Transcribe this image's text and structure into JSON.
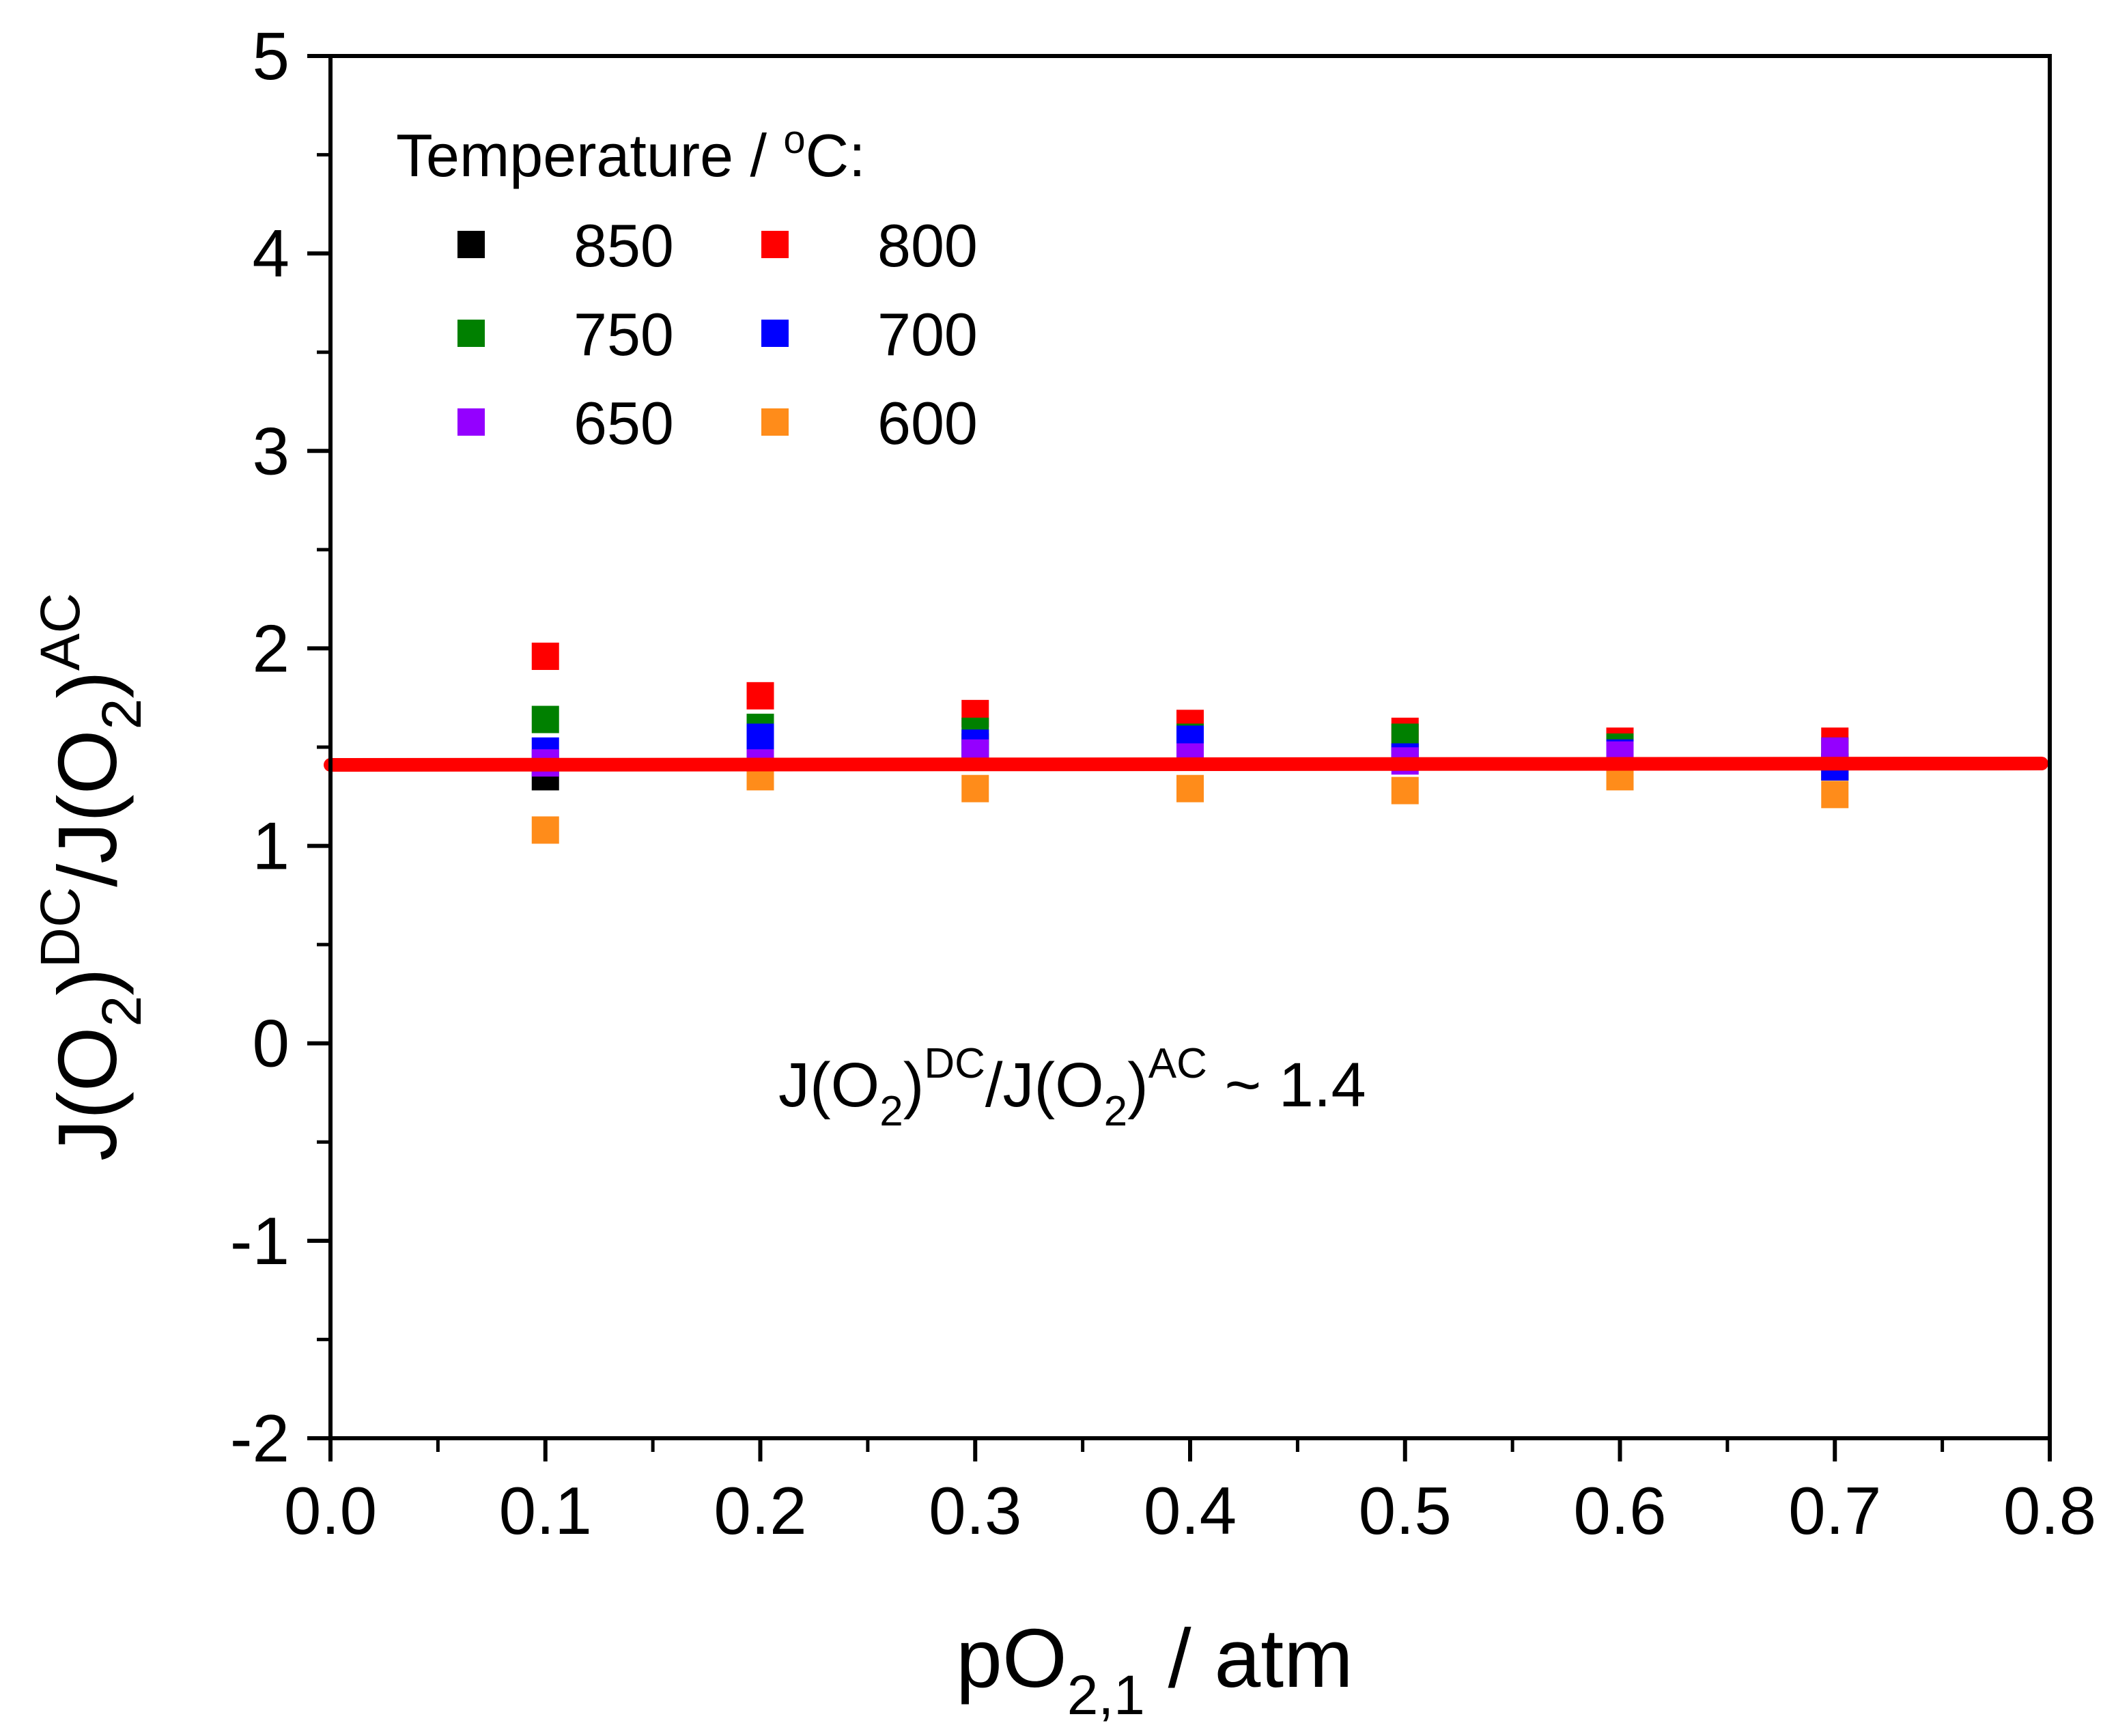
{
  "chart_data": {
    "type": "scatter",
    "title": "",
    "xlabel": {
      "main": "pO",
      "sub": "2,1",
      "rest": " / atm"
    },
    "ylabel": {
      "p1": "J(O",
      "sub1": "2",
      "p2": ")",
      "sup1": "DC",
      "p3": "/J(O",
      "sub2": "2",
      "p4": ")",
      "sup2": "AC"
    },
    "xlim": [
      0.0,
      0.8
    ],
    "ylim": [
      -2,
      5
    ],
    "x_ticks": [
      "0.0",
      "0.1",
      "0.2",
      "0.3",
      "0.4",
      "0.5",
      "0.6",
      "0.7",
      "0.8"
    ],
    "y_ticks": [
      "-2",
      "-1",
      "0",
      "1",
      "2",
      "3",
      "4",
      "5"
    ],
    "legend": {
      "title_text": "Temperature / ",
      "title_sup": "o",
      "title_end": "C:",
      "placement": "top-left"
    },
    "x": [
      0.1,
      0.2,
      0.3,
      0.4,
      0.5,
      0.6,
      0.7
    ],
    "series": [
      {
        "name": "850",
        "color": "#000000",
        "values": [
          1.35,
          1.45,
          1.5,
          1.5,
          1.45,
          1.48,
          1.4
        ]
      },
      {
        "name": "800",
        "color": "#ff0000",
        "values": [
          1.96,
          1.76,
          1.67,
          1.62,
          1.58,
          1.53,
          1.53
        ]
      },
      {
        "name": "750",
        "color": "#008000",
        "values": [
          1.64,
          1.6,
          1.58,
          1.55,
          1.55,
          1.5,
          1.48
        ]
      },
      {
        "name": "700",
        "color": "#0000ff",
        "values": [
          1.48,
          1.55,
          1.52,
          1.54,
          1.45,
          1.47,
          1.4
        ]
      },
      {
        "name": "650",
        "color": "#9400ff",
        "values": [
          1.42,
          1.42,
          1.47,
          1.45,
          1.43,
          1.46,
          1.48
        ]
      },
      {
        "name": "600",
        "color": "#ff8c1a",
        "values": [
          1.08,
          1.35,
          1.29,
          1.29,
          1.28,
          1.35,
          1.26
        ]
      }
    ],
    "fit_line": {
      "y": 1.41,
      "color": "#ff0000",
      "x_range": [
        0.0,
        0.8
      ]
    },
    "annotation": {
      "p1": "J(O",
      "sub1": "2",
      "p2": ")",
      "sup1": "DC",
      "p3": "/J(O",
      "sub2": "2",
      "p4": ")",
      "sup2": "AC",
      "p5": " ~ 1.4"
    }
  }
}
